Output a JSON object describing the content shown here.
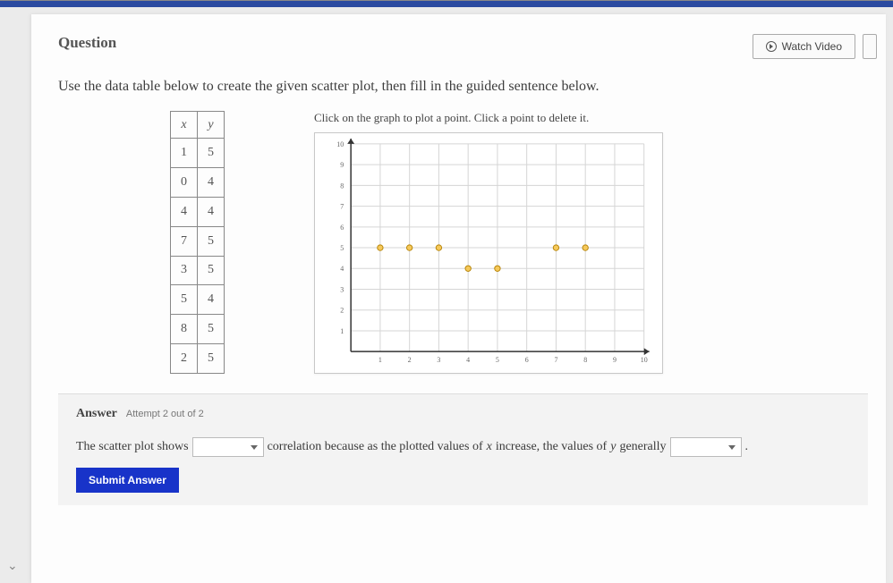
{
  "header": {
    "question_label": "Question",
    "watch_video": "Watch Video"
  },
  "instruction": "Use the data table below to create the given scatter plot, then fill in the guided sentence below.",
  "table": {
    "columns": [
      "x",
      "y"
    ],
    "rows": [
      [
        "1",
        "5"
      ],
      [
        "0",
        "4"
      ],
      [
        "4",
        "4"
      ],
      [
        "7",
        "5"
      ],
      [
        "3",
        "5"
      ],
      [
        "5",
        "4"
      ],
      [
        "8",
        "5"
      ],
      [
        "2",
        "5"
      ]
    ]
  },
  "graph": {
    "instruction": "Click on the graph to plot a point. Click a point to delete it.",
    "xlim": [
      0,
      10
    ],
    "ylim": [
      0,
      10
    ],
    "xtick_step": 1,
    "ytick_step": 1,
    "grid_color": "#d5d5d5",
    "axis_color": "#333333",
    "background_color": "#ffffff",
    "point_fill": "#f6c95b",
    "point_stroke": "#b8860b",
    "point_radius": 3.2,
    "tick_fontsize": 8,
    "tick_color": "#666666",
    "points": [
      {
        "x": 1,
        "y": 5
      },
      {
        "x": 2,
        "y": 5
      },
      {
        "x": 3,
        "y": 5
      },
      {
        "x": 4,
        "y": 4
      },
      {
        "x": 5,
        "y": 4
      },
      {
        "x": 7,
        "y": 5
      },
      {
        "x": 8,
        "y": 5
      }
    ]
  },
  "answer": {
    "label": "Answer",
    "attempt": "Attempt 2 out of 2",
    "sentence_pre": "The scatter plot shows",
    "sentence_mid": "correlation because as the plotted values of",
    "var_x": "x",
    "sentence_mid2": "increase, the values of",
    "var_y": "y",
    "sentence_end": "generally",
    "period": ".",
    "submit": "Submit Answer"
  }
}
